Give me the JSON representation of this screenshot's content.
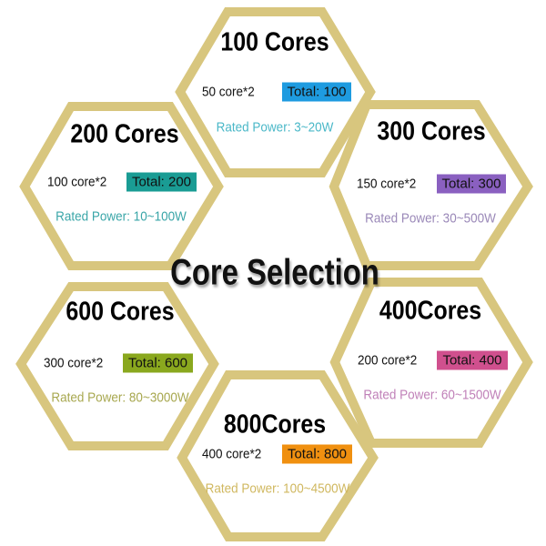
{
  "title": "Core Selection",
  "hex_border_color": "#d8c67e",
  "hexes": [
    {
      "title": "100 Cores",
      "cores": "50 core*2",
      "total": "Total: 100",
      "power": "Rated Power: 3~20W",
      "badge_color": "#1e9be0",
      "power_color": "#4bb8c8"
    },
    {
      "title": "200 Cores",
      "cores": "100 core*2",
      "total": "Total: 200",
      "power": "Rated Power: 10~100W",
      "badge_color": "#1a9c94",
      "power_color": "#3aa6a8"
    },
    {
      "title": "300 Cores",
      "cores": "150 core*2",
      "total": "Total: 300",
      "power": "Rated Power: 30~500W",
      "badge_color": "#8a60c0",
      "power_color": "#9a88b8"
    },
    {
      "title": "600 Cores",
      "cores": "300 core*2",
      "total": "Total: 600",
      "power": "Rated Power: 80~3000W",
      "badge_color": "#8aa81e",
      "power_color": "#a8a850"
    },
    {
      "title": "400Cores",
      "cores": "200 core*2",
      "total": "Total: 400",
      "power": "Rated Power: 60~1500W",
      "badge_color": "#d0508e",
      "power_color": "#c080b8"
    },
    {
      "title": "800Cores",
      "cores": "400 core*2",
      "total": "Total: 800",
      "power": "Rated Power: 100~4500W",
      "badge_color": "#f09010",
      "power_color": "#d0b860"
    }
  ]
}
